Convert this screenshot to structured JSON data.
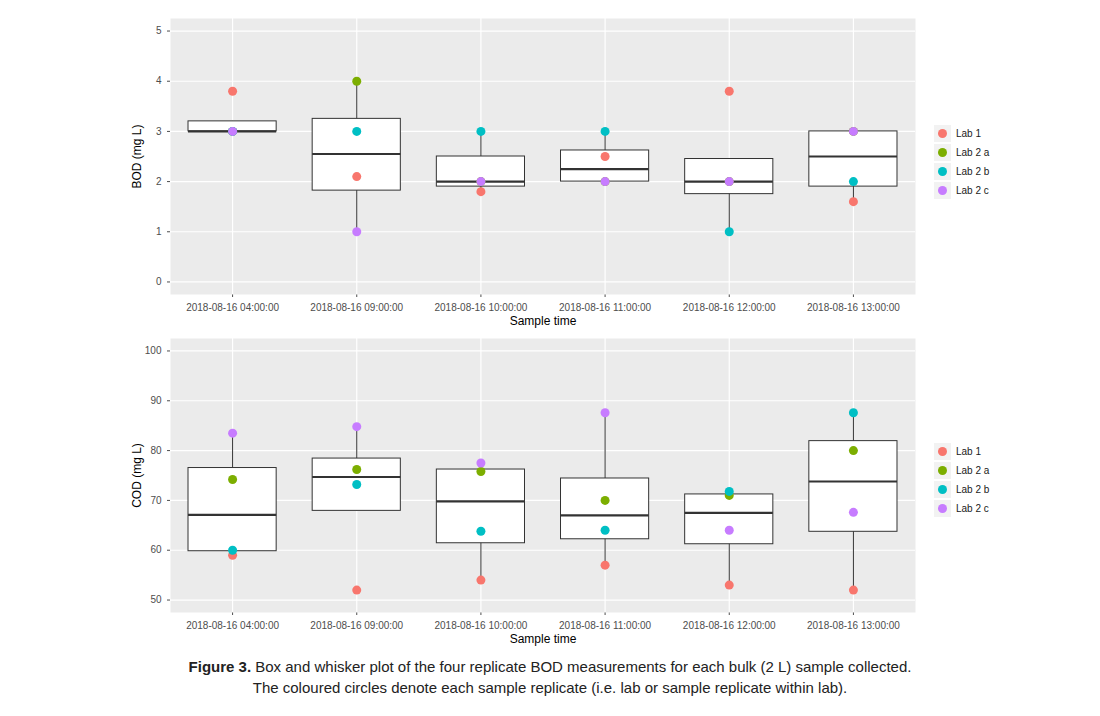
{
  "chart_data": [
    {
      "type": "box",
      "ylabel": "BOD (mg L)",
      "xlabel": "Sample time",
      "categories": [
        "2018-08-16 04:00:00",
        "2018-08-16 09:00:00",
        "2018-08-16 10:00:00",
        "2018-08-16 11:00:00",
        "2018-08-16 12:00:00",
        "2018-08-16 13:00:00"
      ],
      "series": [
        {
          "name": "Lab 1",
          "color": "#F8766D",
          "values": [
            3.8,
            2.1,
            1.8,
            2.5,
            3.8,
            1.6
          ]
        },
        {
          "name": "Lab 2 a",
          "color": "#7CAE00",
          "values": [
            3.0,
            4.0,
            2.0,
            2.0,
            2.0,
            3.0
          ]
        },
        {
          "name": "Lab 2 b",
          "color": "#00BFC4",
          "values": [
            3.0,
            3.0,
            3.0,
            3.0,
            1.0,
            2.0
          ]
        },
        {
          "name": "Lab 2 c",
          "color": "#C77CFF",
          "values": [
            3.0,
            1.0,
            2.0,
            2.0,
            2.0,
            3.0
          ]
        }
      ],
      "boxes": [
        {
          "low": 3.0,
          "q1": 3.0,
          "median": 3.0,
          "q3": 3.2,
          "high": 3.2
        },
        {
          "low": 1.0,
          "q1": 1.82,
          "median": 2.55,
          "q3": 3.25,
          "high": 4.0
        },
        {
          "low": 1.8,
          "q1": 1.9,
          "median": 2.0,
          "q3": 2.5,
          "high": 3.0
        },
        {
          "low": 2.0,
          "q1": 2.0,
          "median": 2.25,
          "q3": 2.62,
          "high": 3.0
        },
        {
          "low": 1.0,
          "q1": 1.75,
          "median": 2.0,
          "q3": 2.45,
          "high": 2.45
        },
        {
          "low": 1.6,
          "q1": 1.9,
          "median": 2.5,
          "q3": 3.0,
          "high": 3.0
        }
      ],
      "ylim": [
        -0.25,
        5.25
      ],
      "yticks": [
        0,
        1,
        2,
        3,
        4,
        5
      ],
      "grid": true,
      "legend": "right",
      "marker": "circle"
    },
    {
      "type": "box",
      "ylabel": "COD (mg L)",
      "xlabel": "Sample time",
      "categories": [
        "2018-08-16 04:00:00",
        "2018-08-16 09:00:00",
        "2018-08-16 10:00:00",
        "2018-08-16 11:00:00",
        "2018-08-16 12:00:00",
        "2018-08-16 13:00:00"
      ],
      "series": [
        {
          "name": "Lab 1",
          "color": "#F8766D",
          "values": [
            59,
            52,
            54,
            57,
            53,
            52
          ]
        },
        {
          "name": "Lab 2 a",
          "color": "#7CAE00",
          "values": [
            74.2,
            76.2,
            75.8,
            70,
            71,
            80
          ]
        },
        {
          "name": "Lab 2 b",
          "color": "#00BFC4",
          "values": [
            60,
            73.2,
            63.8,
            64,
            71.8,
            87.6
          ]
        },
        {
          "name": "Lab 2 c",
          "color": "#C77CFF",
          "values": [
            83.5,
            84.8,
            77.5,
            87.6,
            64,
            67.6
          ]
        }
      ],
      "boxes": [
        {
          "low": 59,
          "q1": 59.8,
          "median": 67.1,
          "q3": 76.5,
          "high": 83.5
        },
        {
          "low": 67.9,
          "q1": 67.9,
          "median": 74.7,
          "q3": 78.4,
          "high": 84.8
        },
        {
          "low": 54,
          "q1": 61.4,
          "median": 69.8,
          "q3": 76.2,
          "high": 77.5
        },
        {
          "low": 57,
          "q1": 62.2,
          "median": 67,
          "q3": 74.4,
          "high": 87.6
        },
        {
          "low": 53,
          "q1": 61.2,
          "median": 67.5,
          "q3": 71.2,
          "high": 71.8
        },
        {
          "low": 52,
          "q1": 63.7,
          "median": 73.8,
          "q3": 81.9,
          "high": 87.6
        }
      ],
      "ylim": [
        47.5,
        102.5
      ],
      "yticks": [
        50,
        60,
        70,
        80,
        90,
        100
      ],
      "grid": true,
      "legend": "right",
      "marker": "circle"
    }
  ],
  "caption": {
    "label": "Figure 3.",
    "lines": [
      "Box and whisker plot of the four replicate BOD measurements for each bulk (2 L) sample collected.",
      "The coloured circles denote each sample replicate (i.e. lab or sample replicate within lab)."
    ]
  }
}
